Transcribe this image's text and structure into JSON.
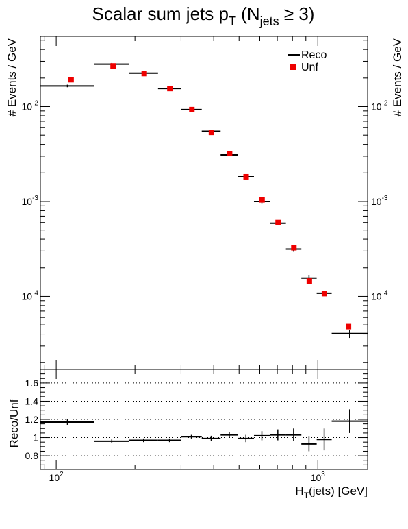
{
  "chart_data": [
    {
      "type": "scatter",
      "title": "Scalar sum jets p_T (N_jets ≥ 3)",
      "title_parts": {
        "main": "Scalar sum jets p",
        "sub_t": "T",
        "open": " (N",
        "sub_jets": "jets",
        "close": " ≥ 3)"
      },
      "ylabel": "# Events / GeV",
      "ylabel_right": "# Events / GeV",
      "yscale": "log",
      "ylim": [
        1.7e-05,
        0.055
      ],
      "xscale": "log",
      "xlim": [
        87,
        1550
      ],
      "grid": false,
      "legend_position": "top-right",
      "y_ticks": [
        {
          "value": 0.01,
          "mant": "10",
          "exp": "-2"
        },
        {
          "value": 0.001,
          "mant": "10",
          "exp": "-3"
        },
        {
          "value": 0.0001,
          "mant": "10",
          "exp": "-4"
        }
      ],
      "series": [
        {
          "name": "Reco",
          "style": "horizontal-bin-lines",
          "color": "#000000",
          "bins": [
            {
              "lo": 87,
              "hi": 140,
              "y": 0.0165,
              "yerr": 0.0005
            },
            {
              "lo": 140,
              "hi": 190,
              "y": 0.028,
              "yerr": 0.0008
            },
            {
              "lo": 190,
              "hi": 245,
              "y": 0.0225,
              "yerr": 0.0006
            },
            {
              "lo": 245,
              "hi": 300,
              "y": 0.0155,
              "yerr": 0.0004
            },
            {
              "lo": 300,
              "hi": 360,
              "y": 0.0093,
              "yerr": 0.0003
            },
            {
              "lo": 360,
              "hi": 425,
              "y": 0.0055,
              "yerr": 0.00015
            },
            {
              "lo": 425,
              "hi": 495,
              "y": 0.0031,
              "yerr": 9e-05
            },
            {
              "lo": 495,
              "hi": 570,
              "y": 0.00182,
              "yerr": 6e-05
            },
            {
              "lo": 570,
              "hi": 655,
              "y": 0.001,
              "yerr": 4e-05
            },
            {
              "lo": 655,
              "hi": 755,
              "y": 0.00059,
              "yerr": 3e-05
            },
            {
              "lo": 755,
              "hi": 865,
              "y": 0.000315,
              "yerr": 2e-05
            },
            {
              "lo": 865,
              "hi": 990,
              "y": 0.000156,
              "yerr": 1e-05
            },
            {
              "lo": 990,
              "hi": 1130,
              "y": 0.000108,
              "yerr": 7e-06
            },
            {
              "lo": 1130,
              "hi": 1550,
              "y": 4.05e-05,
              "yerr": 4e-06
            }
          ]
        },
        {
          "name": "Unf",
          "style": "square-markers",
          "color": "#ee0000",
          "points": [
            {
              "x": 114,
              "y": 0.0192
            },
            {
              "x": 165,
              "y": 0.0268
            },
            {
              "x": 217,
              "y": 0.0223
            },
            {
              "x": 272,
              "y": 0.0155
            },
            {
              "x": 330,
              "y": 0.0093
            },
            {
              "x": 392,
              "y": 0.00535
            },
            {
              "x": 460,
              "y": 0.0032
            },
            {
              "x": 532,
              "y": 0.00182
            },
            {
              "x": 612,
              "y": 0.00104
            },
            {
              "x": 705,
              "y": 0.0006
            },
            {
              "x": 810,
              "y": 0.000325
            },
            {
              "x": 928,
              "y": 0.000145
            },
            {
              "x": 1060,
              "y": 0.000107
            },
            {
              "x": 1310,
              "y": 4.8e-05
            }
          ]
        }
      ]
    },
    {
      "type": "scatter",
      "ylabel": "Reco/Unf",
      "xlabel": "H_T(jets) [GeV]",
      "xlabel_parts": {
        "main": "H",
        "sub": "T",
        "rest": "(jets) [GeV]"
      },
      "xscale": "log",
      "xlim": [
        87,
        1550
      ],
      "ylim": [
        0.65,
        1.75
      ],
      "grid": "horizontal-dotted",
      "grid_values": [
        0.8,
        1.0,
        1.2,
        1.4,
        1.6
      ],
      "y_ticks": [
        {
          "value": 0.8,
          "label": "0.8"
        },
        {
          "value": 1.0,
          "label": "1"
        },
        {
          "value": 1.2,
          "label": "1.2"
        },
        {
          "value": 1.4,
          "label": "1.4"
        },
        {
          "value": 1.6,
          "label": "1.6"
        }
      ],
      "x_ticks": [
        {
          "value": 100,
          "mant": "10",
          "exp": "2"
        },
        {
          "value": 1000,
          "mant": "10",
          "exp": "3"
        }
      ],
      "series": [
        {
          "name": "Reco/Unf",
          "color": "#000000",
          "bins": [
            {
              "lo": 87,
              "hi": 140,
              "y": 1.17,
              "yerr": 0.03
            },
            {
              "lo": 140,
              "hi": 190,
              "y": 0.96,
              "yerr": 0.02
            },
            {
              "lo": 190,
              "hi": 245,
              "y": 0.97,
              "yerr": 0.02
            },
            {
              "lo": 245,
              "hi": 300,
              "y": 0.97,
              "yerr": 0.02
            },
            {
              "lo": 300,
              "hi": 360,
              "y": 1.01,
              "yerr": 0.02
            },
            {
              "lo": 360,
              "hi": 425,
              "y": 0.99,
              "yerr": 0.03
            },
            {
              "lo": 425,
              "hi": 495,
              "y": 1.03,
              "yerr": 0.03
            },
            {
              "lo": 495,
              "hi": 570,
              "y": 0.99,
              "yerr": 0.04
            },
            {
              "lo": 570,
              "hi": 655,
              "y": 1.02,
              "yerr": 0.05
            },
            {
              "lo": 655,
              "hi": 755,
              "y": 1.03,
              "yerr": 0.06
            },
            {
              "lo": 755,
              "hi": 865,
              "y": 1.03,
              "yerr": 0.07
            },
            {
              "lo": 865,
              "hi": 990,
              "y": 0.93,
              "yerr": 0.08
            },
            {
              "lo": 990,
              "hi": 1130,
              "y": 0.98,
              "yerr": 0.12
            },
            {
              "lo": 1130,
              "hi": 1550,
              "y": 1.18,
              "yerr": 0.13
            }
          ]
        }
      ]
    }
  ]
}
